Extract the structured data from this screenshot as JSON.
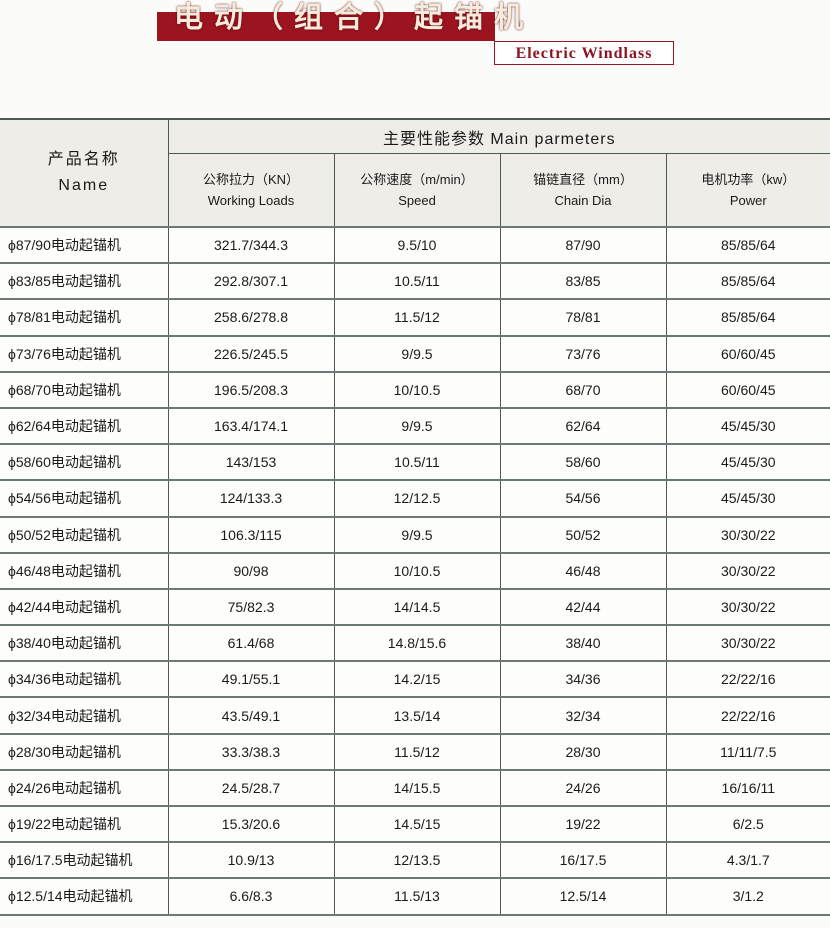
{
  "header": {
    "title_cn": "电动（组合）起锚机",
    "title_en": "Electric Windlass",
    "brand_color": "#9b1420"
  },
  "table": {
    "name_header_cn": "产品名称",
    "name_header_en": "Name",
    "group_header": "主要性能参数  Main parmeters",
    "columns": [
      {
        "cn": "公称拉力（KN）",
        "en": "Working Loads"
      },
      {
        "cn": "公称速度（m/min）",
        "en": "Speed"
      },
      {
        "cn": "锚链直径（mm）",
        "en": "Chain Dia"
      },
      {
        "cn": "电机功率（kw）",
        "en": "Power"
      }
    ],
    "rows": [
      [
        "ϕ87/90电动起锚机",
        "321.7/344.3",
        "9.5/10",
        "87/90",
        "85/85/64"
      ],
      [
        "ϕ83/85电动起锚机",
        "292.8/307.1",
        "10.5/11",
        "83/85",
        "85/85/64"
      ],
      [
        "ϕ78/81电动起锚机",
        "258.6/278.8",
        "11.5/12",
        "78/81",
        "85/85/64"
      ],
      [
        "ϕ73/76电动起锚机",
        "226.5/245.5",
        "9/9.5",
        "73/76",
        "60/60/45"
      ],
      [
        "ϕ68/70电动起锚机",
        "196.5/208.3",
        "10/10.5",
        "68/70",
        "60/60/45"
      ],
      [
        "ϕ62/64电动起锚机",
        "163.4/174.1",
        "9/9.5",
        "62/64",
        "45/45/30"
      ],
      [
        "ϕ58/60电动起锚机",
        "143/153",
        "10.5/11",
        "58/60",
        "45/45/30"
      ],
      [
        "ϕ54/56电动起锚机",
        "124/133.3",
        "12/12.5",
        "54/56",
        "45/45/30"
      ],
      [
        "ϕ50/52电动起锚机",
        "106.3/115",
        "9/9.5",
        "50/52",
        "30/30/22"
      ],
      [
        "ϕ46/48电动起锚机",
        "90/98",
        "10/10.5",
        "46/48",
        "30/30/22"
      ],
      [
        "ϕ42/44电动起锚机",
        "75/82.3",
        "14/14.5",
        "42/44",
        "30/30/22"
      ],
      [
        "ϕ38/40电动起锚机",
        "61.4/68",
        "14.8/15.6",
        "38/40",
        "30/30/22"
      ],
      [
        "ϕ34/36电动起锚机",
        "49.1/55.1",
        "14.2/15",
        "34/36",
        "22/22/16"
      ],
      [
        "ϕ32/34电动起锚机",
        "43.5/49.1",
        "13.5/14",
        "32/34",
        "22/22/16"
      ],
      [
        "ϕ28/30电动起锚机",
        "33.3/38.3",
        "11.5/12",
        "28/30",
        "11/11/7.5"
      ],
      [
        "ϕ24/26电动起锚机",
        "24.5/28.7",
        "14/15.5",
        "24/26",
        "16/16/11"
      ],
      [
        "ϕ19/22电动起锚机",
        "15.3/20.6",
        "14.5/15",
        "19/22",
        "6/2.5"
      ],
      [
        "ϕ16/17.5电动起锚机",
        "10.9/13",
        "12/13.5",
        "16/17.5",
        "4.3/1.7"
      ],
      [
        "ϕ12.5/14电动起锚机",
        "6.6/8.3",
        "11.5/13",
        "12.5/14",
        "3/1.2"
      ]
    ]
  }
}
